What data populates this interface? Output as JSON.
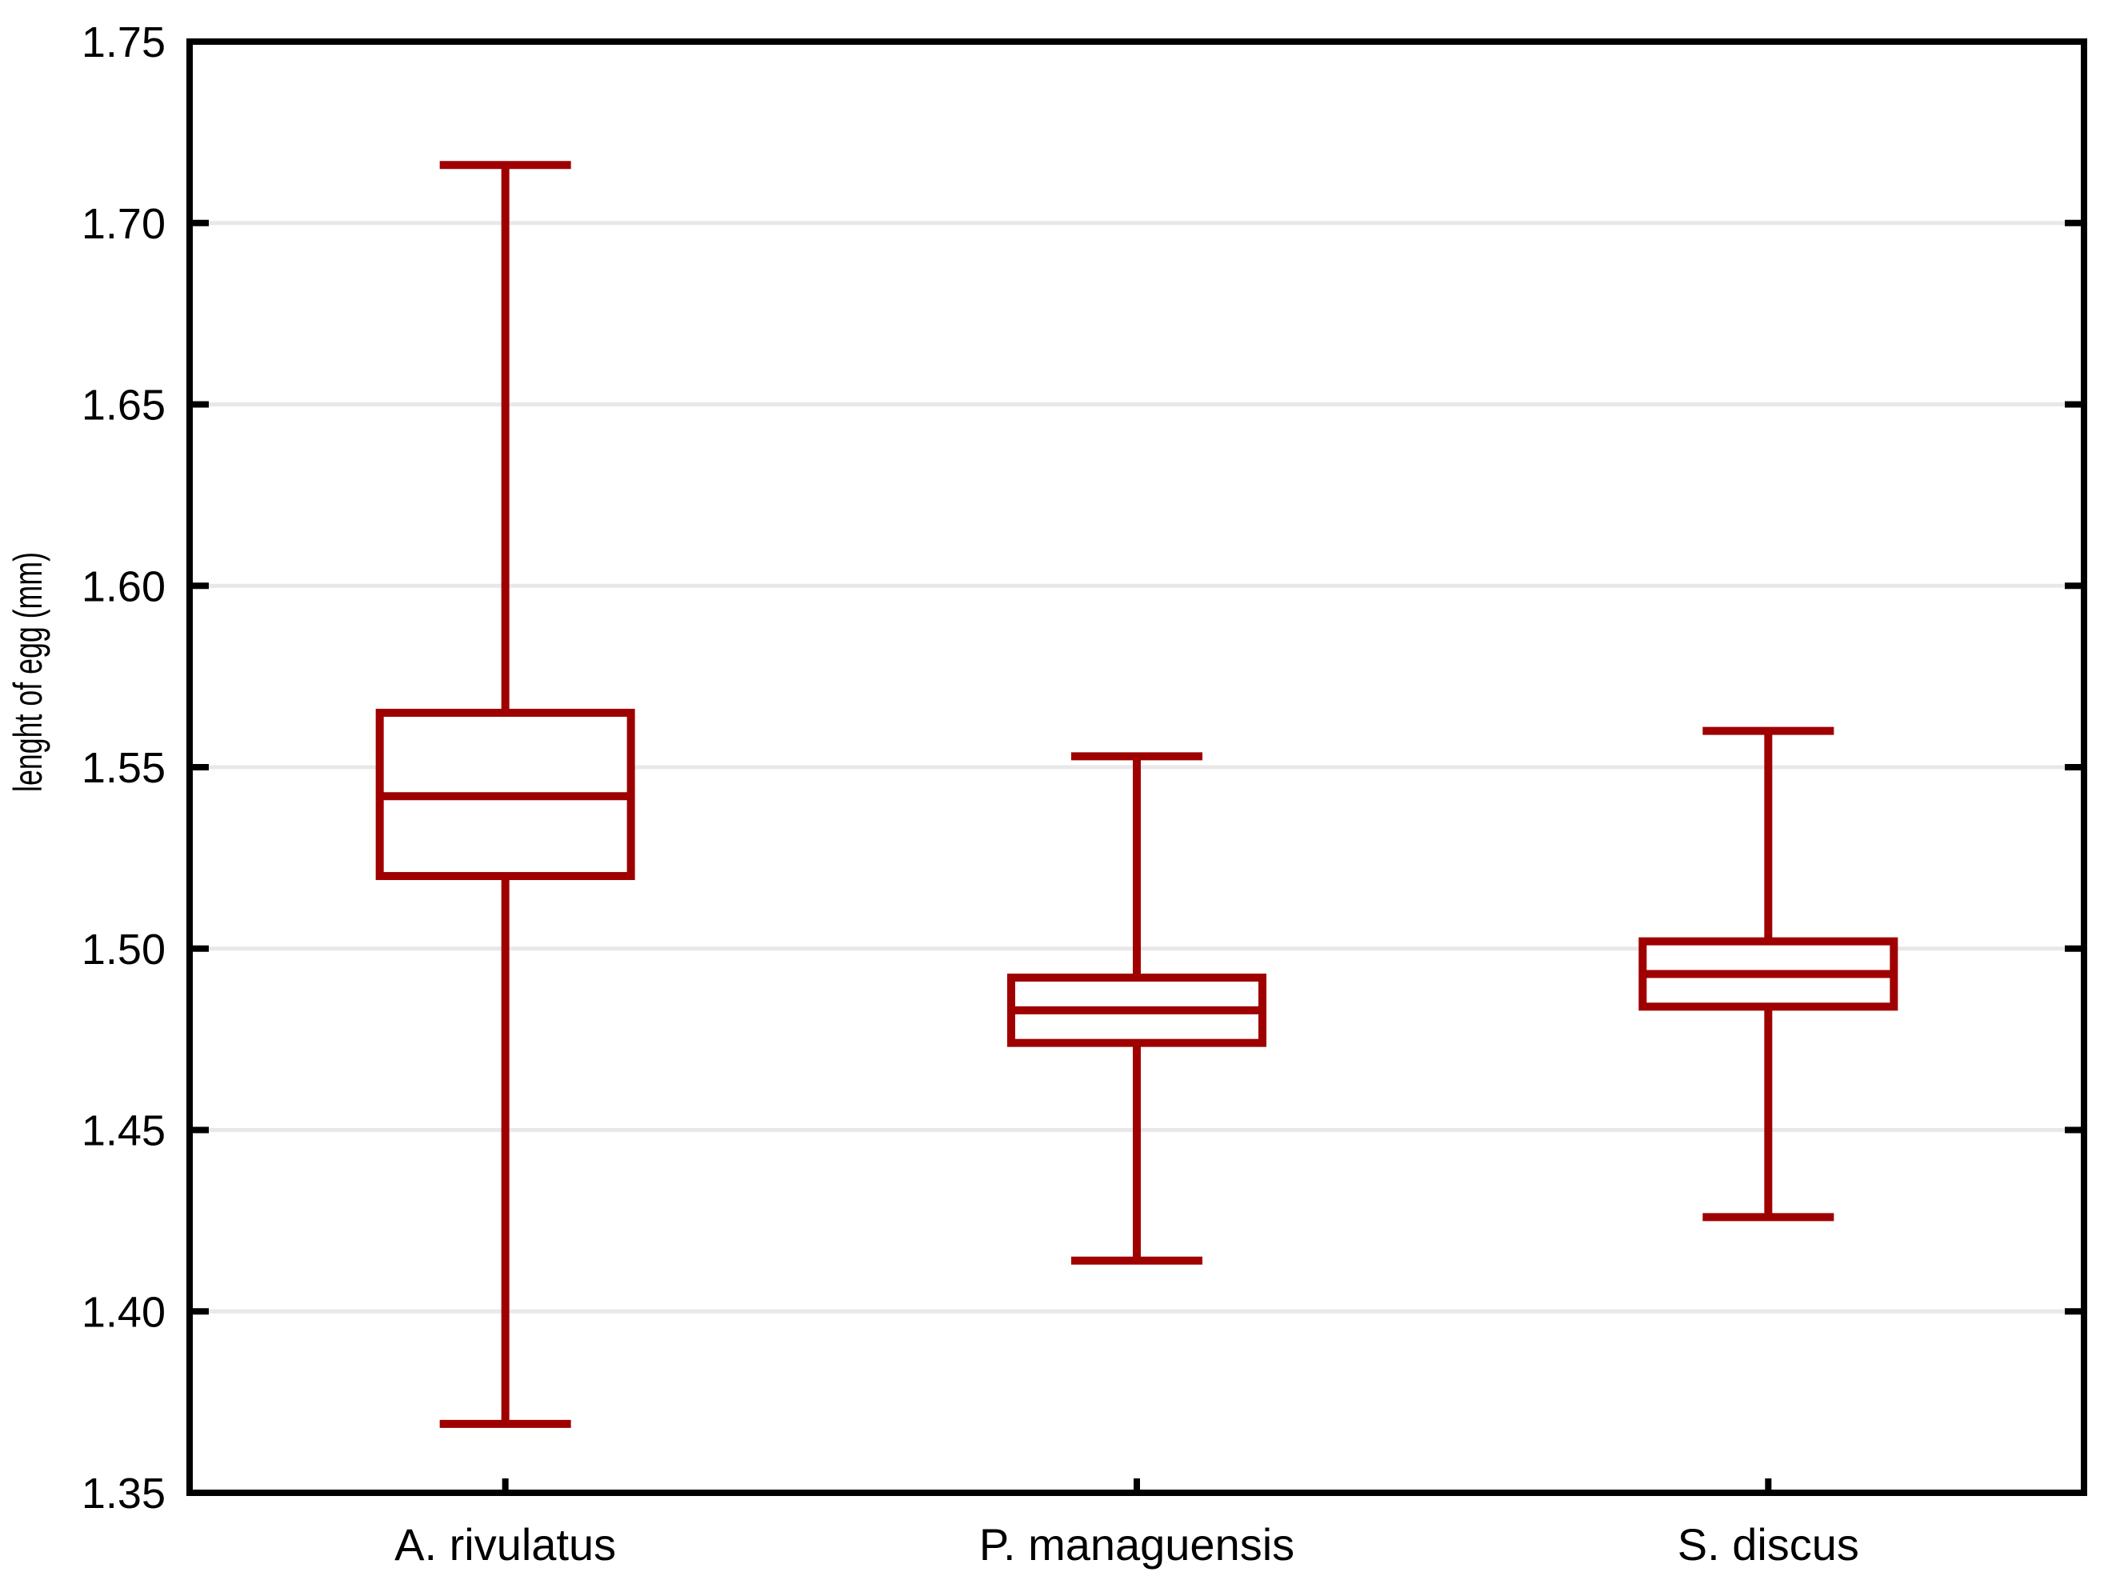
{
  "figure": {
    "background": "#FFFFFF"
  },
  "chart_data": {
    "type": "box",
    "title": "",
    "xlabel": "",
    "ylabel": "lenght of egg (mm)",
    "ylim": [
      1.35,
      1.75
    ],
    "ytick_step": 0.05,
    "ytick_labels": [
      "1.35",
      "1.40",
      "1.45",
      "1.50",
      "1.55",
      "1.60",
      "1.65",
      "1.70",
      "1.75"
    ],
    "grid": "horizontal",
    "legend_position": "none",
    "categories": [
      "A. rivulatus",
      "P. managuensis",
      "S. discus"
    ],
    "series": [
      {
        "name": "A. rivulatus",
        "whisker_low": 1.369,
        "q1": 1.52,
        "median": 1.542,
        "q3": 1.565,
        "whisker_high": 1.716
      },
      {
        "name": "P. managuensis",
        "whisker_low": 1.414,
        "q1": 1.474,
        "median": 1.483,
        "q3": 1.492,
        "whisker_high": 1.553
      },
      {
        "name": "S. discus",
        "whisker_low": 1.426,
        "q1": 1.484,
        "median": 1.493,
        "q3": 1.502,
        "whisker_high": 1.56
      }
    ],
    "colors": {
      "box_outline": "#9F0000",
      "box_fill": "#FFFFFF",
      "median": "#9F0000",
      "whisker": "#9F0000",
      "grid": "#E8E8E8",
      "axis": "#000000",
      "background": "#FFFFFF"
    }
  }
}
